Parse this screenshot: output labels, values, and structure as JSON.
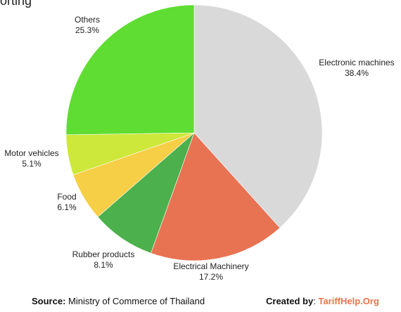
{
  "title": "orting",
  "chart_data": {
    "type": "pie",
    "title": "orting",
    "slices": [
      {
        "label": "Electronic machines",
        "value": 38.4,
        "display": "38.4%",
        "color": "#d9d9d9"
      },
      {
        "label": "Electrical Machinery",
        "value": 17.2,
        "display": "17.2%",
        "color": "#e87352"
      },
      {
        "label": "Rubber products",
        "value": 8.1,
        "display": "8.1%",
        "color": "#4cb04c"
      },
      {
        "label": "Food",
        "value": 6.1,
        "display": "6.1%",
        "color": "#f6cf47"
      },
      {
        "label": "Motor vehicles",
        "value": 5.1,
        "display": "5.1%",
        "color": "#cde83a"
      },
      {
        "label": "Others",
        "value": 25.3,
        "display": "25.3%",
        "color": "#5fdd32"
      }
    ]
  },
  "footer": {
    "source_label": "Source:",
    "source_text": " Ministry of Commerce of Thailand",
    "credit_label": "Created by",
    "credit_sep": ": ",
    "credit_brand": "TariffHelp.Org"
  }
}
